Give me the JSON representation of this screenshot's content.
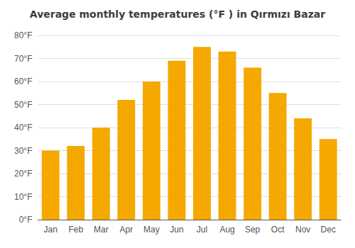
{
  "chart_data": {
    "type": "bar",
    "title": "Average monthly temperatures (°F ) in Qırmızı Bazar",
    "categories": [
      "Jan",
      "Feb",
      "Mar",
      "Apr",
      "May",
      "Jun",
      "Jul",
      "Aug",
      "Sep",
      "Oct",
      "Nov",
      "Dec"
    ],
    "values": [
      30,
      32,
      40,
      52,
      60,
      69,
      75,
      73,
      66,
      55,
      44,
      35
    ],
    "color": "#F5A800",
    "ylim": [
      0,
      80
    ],
    "yticks": [
      {
        "value": 0,
        "label": "0°F"
      },
      {
        "value": 10,
        "label": "10°F"
      },
      {
        "value": 20,
        "label": "20°F"
      },
      {
        "value": 30,
        "label": "30°F"
      },
      {
        "value": 40,
        "label": "40°F"
      },
      {
        "value": 50,
        "label": "50°F"
      },
      {
        "value": 60,
        "label": "60°F"
      },
      {
        "value": 70,
        "label": "70°F"
      },
      {
        "value": 80,
        "label": "80°F"
      }
    ],
    "grid": true
  }
}
